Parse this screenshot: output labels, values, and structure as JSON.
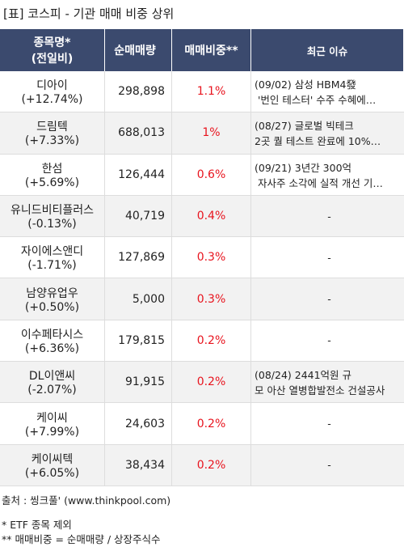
{
  "title": "[표] 코스피 - 기관 매매 비중 상위",
  "table": {
    "header": {
      "name": [
        "종목명*",
        "(전일비)"
      ],
      "volume": "순매매량",
      "ratio": "매매비중**",
      "issue": "최근 이슈"
    },
    "rows": [
      {
        "name": "디아이",
        "change": "(+12.74%)",
        "volume": "298,898",
        "ratio": "1.1%",
        "issue": [
          "(09/02) 삼성 HBM4發",
          " '번인 테스터' 수주 수혜에…"
        ]
      },
      {
        "name": "드림텍",
        "change": "(+7.33%)",
        "volume": "688,013",
        "ratio": "1%",
        "issue": [
          "(08/27) 글로벌 빅테크",
          "2곳 퀄 테스트 완료에 10%…"
        ]
      },
      {
        "name": "한섬",
        "change": "(+5.69%)",
        "volume": "126,444",
        "ratio": "0.6%",
        "issue": [
          "(09/21) 3년간 300억",
          " 자사주 소각에 실적 개선 기…"
        ]
      },
      {
        "name": "유니드비티플러스",
        "change": "(-0.13%)",
        "volume": "40,719",
        "ratio": "0.4%",
        "issue": [
          "-"
        ]
      },
      {
        "name": "자이에스앤디",
        "change": "(-1.71%)",
        "volume": "127,869",
        "ratio": "0.3%",
        "issue": [
          "-"
        ]
      },
      {
        "name": "남양유업우",
        "change": "(+0.50%)",
        "volume": "5,000",
        "ratio": "0.3%",
        "issue": [
          "-"
        ]
      },
      {
        "name": "이수페타시스",
        "change": "(+6.36%)",
        "volume": "179,815",
        "ratio": "0.2%",
        "issue": [
          "-"
        ]
      },
      {
        "name": "DL이앤씨",
        "change": "(-2.07%)",
        "volume": "91,915",
        "ratio": "0.2%",
        "issue": [
          "(08/24) 2441억원 규",
          "모 아산 열병합발전소 건설공사"
        ]
      },
      {
        "name": "케이씨",
        "change": "(+7.99%)",
        "volume": "24,603",
        "ratio": "0.2%",
        "issue": [
          "-"
        ]
      },
      {
        "name": "케이씨텍",
        "change": "(+6.05%)",
        "volume": "38,434",
        "ratio": "0.2%",
        "issue": [
          "-"
        ]
      }
    ]
  },
  "footer": [
    "출처 : 씽크풀' (www.thinkpool.com)",
    "* ETF 종목 제외",
    "** 매매비중 = 순매매량 / 상장주식수"
  ]
}
